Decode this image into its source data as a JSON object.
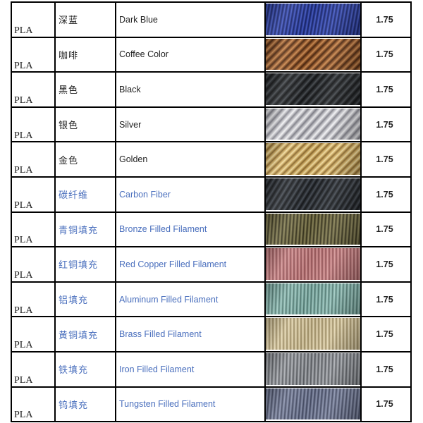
{
  "document": {
    "type": "filament-specification-table",
    "columns": [
      "material",
      "color_name_zh",
      "color_name_en",
      "photo",
      "diameter_mm"
    ],
    "text_color_default": "#1f1f1f",
    "text_color_link": "#4a6fbd",
    "border_color": "#000000",
    "rows": [
      {
        "material": "PLA",
        "name_zh": "深蓝",
        "name_en": "Dark Blue",
        "diameter": "1.75",
        "link_styled": false,
        "swatch": {
          "name": "dark-blue-filament-photo",
          "dark": "#18235f",
          "base": "#2b3da0",
          "light": "#4e64c8",
          "angle": 100,
          "period": 5
        }
      },
      {
        "material": "PLA",
        "name_zh": "咖啡",
        "name_en": "Coffee Color",
        "diameter": "1.75",
        "link_styled": false,
        "swatch": {
          "name": "coffee-filament-photo",
          "dark": "#48260f",
          "base": "#96582b",
          "light": "#cf9055",
          "angle": 135,
          "period": 8
        }
      },
      {
        "material": "PLA",
        "name_zh": "黑色",
        "name_en": "Black",
        "diameter": "1.75",
        "link_styled": false,
        "swatch": {
          "name": "black-filament-photo",
          "dark": "#121315",
          "base": "#292c2f",
          "light": "#4d5156",
          "angle": 132,
          "period": 8
        }
      },
      {
        "material": "PLA",
        "name_zh": "银色",
        "name_en": "Silver",
        "diameter": "1.75",
        "link_styled": false,
        "swatch": {
          "name": "silver-filament-photo",
          "dark": "#83838c",
          "base": "#c6c6cb",
          "light": "#f4f4f6",
          "angle": 132,
          "period": 9
        }
      },
      {
        "material": "PLA",
        "name_zh": "金色",
        "name_en": "Golden",
        "diameter": "1.75",
        "link_styled": false,
        "swatch": {
          "name": "golden-filament-photo",
          "dark": "#8a682e",
          "base": "#d2ae62",
          "light": "#f1dda4",
          "angle": 135,
          "period": 8
        }
      },
      {
        "material": "PLA",
        "name_zh": "碳纤维",
        "name_en": "Carbon Fiber",
        "diameter": "1.75",
        "link_styled": true,
        "swatch": {
          "name": "carbon-fiber-filament-photo",
          "dark": "#15171a",
          "base": "#2d3136",
          "light": "#4a5059",
          "angle": 122,
          "period": 7
        }
      },
      {
        "material": "PLA",
        "name_zh": "青铜填充",
        "name_en": "Bronze Filled Filament",
        "diameter": "1.75",
        "link_styled": true,
        "swatch": {
          "name": "bronze-filled-filament-photo",
          "dark": "#2f2c18",
          "base": "#6b6540",
          "light": "#908a5e",
          "angle": 94,
          "period": 5
        }
      },
      {
        "material": "PLA",
        "name_zh": "红铜填充",
        "name_en": "Red Copper Filled Filament",
        "diameter": "1.75",
        "link_styled": true,
        "swatch": {
          "name": "red-copper-filled-filament-photo",
          "dark": "#8a4d50",
          "base": "#c07a7c",
          "light": "#daa0a0",
          "angle": 90,
          "period": 5
        }
      },
      {
        "material": "PLA",
        "name_zh": "铝填充",
        "name_en": "Aluminum Filled Filament",
        "diameter": "1.75",
        "link_styled": true,
        "swatch": {
          "name": "aluminum-filled-filament-photo",
          "dark": "#4e736c",
          "base": "#7fafa7",
          "light": "#abd0c9",
          "angle": 92,
          "period": 5
        }
      },
      {
        "material": "PLA",
        "name_zh": "黄铜填充",
        "name_en": "Brass Filled Filament",
        "diameter": "1.75",
        "link_styled": true,
        "swatch": {
          "name": "brass-filled-filament-photo",
          "dark": "#94845c",
          "base": "#cdbd94",
          "light": "#e9ddbb",
          "angle": 90,
          "period": 5
        }
      },
      {
        "material": "PLA",
        "name_zh": "铁填充",
        "name_en": "Iron Filled Filament",
        "diameter": "1.75",
        "link_styled": true,
        "swatch": {
          "name": "iron-filled-filament-photo",
          "dark": "#53565b",
          "base": "#8b8e93",
          "light": "#b6b9be",
          "angle": 92,
          "period": 5
        }
      },
      {
        "material": "PLA",
        "name_zh": "钨填充",
        "name_en": "Tungsten Filled Filament",
        "diameter": "1.75",
        "link_styled": true,
        "swatch": {
          "name": "tungsten-filled-filament-photo",
          "dark": "#3f455c",
          "base": "#6d7590",
          "light": "#939bb4",
          "angle": 95,
          "period": 5
        }
      }
    ]
  }
}
